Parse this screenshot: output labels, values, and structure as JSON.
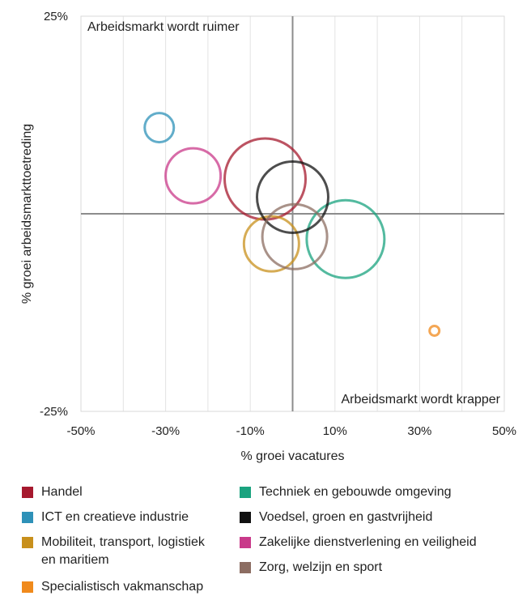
{
  "chart_data": {
    "type": "bubble",
    "xlabel": "% groei vacatures",
    "ylabel": "% groei arbeidsmarkttoetreding",
    "xlim": [
      -50,
      50
    ],
    "ylim": [
      -25,
      25
    ],
    "x_ticks": [
      "-50%",
      "-30%",
      "-10%",
      "10%",
      "30%",
      "50%"
    ],
    "y_ticks": [
      "25%",
      "-25%"
    ],
    "annotations": {
      "top_left": "Arbeidsmarkt wordt ruimer",
      "bottom_right": "Arbeidsmarkt wordt krapper"
    },
    "series": [
      {
        "name": "Handel",
        "color": "#a6192e",
        "x": -6.5,
        "y": 4.4,
        "size": 50
      },
      {
        "name": "ICT en creatieve industrie",
        "color": "#2e91b8",
        "x": -31.5,
        "y": 10.9,
        "size": 18
      },
      {
        "name": "Mobiliteit, transport, logistiek en maritiem",
        "color": "#c8901c",
        "x": -5,
        "y": -3.8,
        "size": 34
      },
      {
        "name": "Specialistisch vakmanschap",
        "color": "#f08a1c",
        "x": 33.5,
        "y": -14.8,
        "size": 6
      },
      {
        "name": "Techniek en gebouwde omgeving",
        "color": "#1aa37f",
        "x": 12.5,
        "y": -3.2,
        "size": 48
      },
      {
        "name": "Voedsel, groen en gastvrijheid",
        "color": "#111111",
        "x": 0,
        "y": 2.1,
        "size": 44
      },
      {
        "name": "Zakelijke dienstverlening en veiligheid",
        "color": "#c93a8a",
        "x": -23.5,
        "y": 4.8,
        "size": 34
      },
      {
        "name": "Zorg, welzijn en sport",
        "color": "#8c6d62",
        "x": 0.5,
        "y": -2.9,
        "size": 40
      }
    ]
  }
}
